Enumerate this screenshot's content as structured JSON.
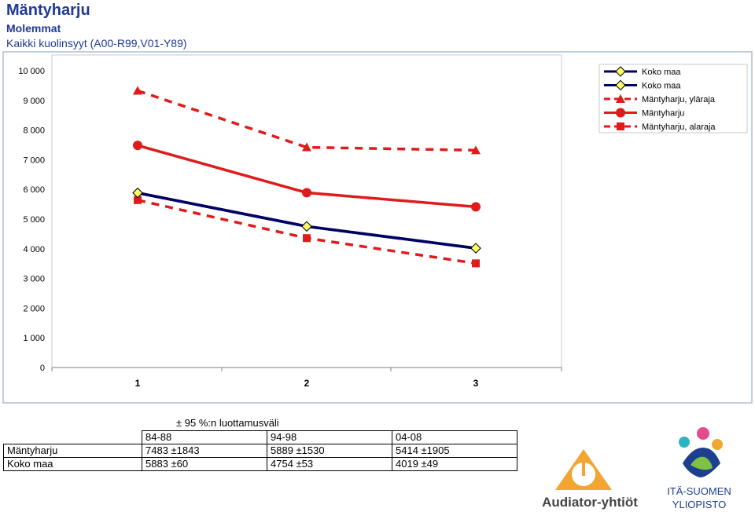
{
  "header": {
    "title": "Mäntyharju",
    "subtitle": "Molemmat",
    "description": "Kaikki kuolinsyyt (A00-R99,V01-Y89)"
  },
  "colors": {
    "plot_bg": "#ffffff",
    "chart_border": "#a8bfd6",
    "koko_maa": "#000066",
    "mantyharju": "#e01b1b",
    "marker_fill_koko": "#ffff66"
  },
  "chart_data": {
    "type": "line",
    "x": [
      1,
      2,
      3
    ],
    "x_tick_labels": [
      "1",
      "2",
      "3"
    ],
    "ylim": [
      0,
      10000
    ],
    "y_ticks": [
      0,
      1000,
      2000,
      3000,
      4000,
      5000,
      6000,
      7000,
      8000,
      9000,
      10000
    ],
    "y_tick_labels": [
      "0",
      "1 000",
      "2 000",
      "3 000",
      "4 000",
      "5 000",
      "6 000",
      "7 000",
      "8 000",
      "9 000",
      "10 000"
    ],
    "grid": false,
    "legend_position": "top-right",
    "series": [
      {
        "name": "Koko maa",
        "values": [
          5883,
          4754,
          4019
        ],
        "style": "solid",
        "marker": "diamond",
        "color": "#000066"
      },
      {
        "name": "Koko maa",
        "values": [
          5883,
          4754,
          4019
        ],
        "style": "solid",
        "marker": "diamond",
        "color": "#000066"
      },
      {
        "name": "Mäntyharju, yläraja",
        "values": [
          9326,
          7419,
          7319
        ],
        "style": "dashed",
        "marker": "triangle",
        "color": "#e01b1b"
      },
      {
        "name": "Mäntyharju",
        "values": [
          7483,
          5889,
          5414
        ],
        "style": "solid",
        "marker": "circle",
        "color": "#e01b1b"
      },
      {
        "name": "Mäntyharju, alaraja",
        "values": [
          5640,
          4359,
          3509
        ],
        "style": "dashed",
        "marker": "square",
        "color": "#e01b1b"
      }
    ]
  },
  "table": {
    "caption": "± 95 %:n luottamusväli",
    "columns": [
      "84-88",
      "94-98",
      "04-08"
    ],
    "rows": [
      {
        "label": "Mäntyharju",
        "values": [
          "7483 ±1843",
          "5889 ±1530",
          "5414 ±1905"
        ]
      },
      {
        "label": "Koko maa",
        "values": [
          "5883 ±60",
          "4754 ±53",
          "4019 ±49"
        ]
      }
    ]
  },
  "logos": {
    "audiator_text": "Audiator-yhtiöt",
    "uef_line1": "ITÄ-SUOMEN",
    "uef_line2": "YLIOPISTO"
  }
}
